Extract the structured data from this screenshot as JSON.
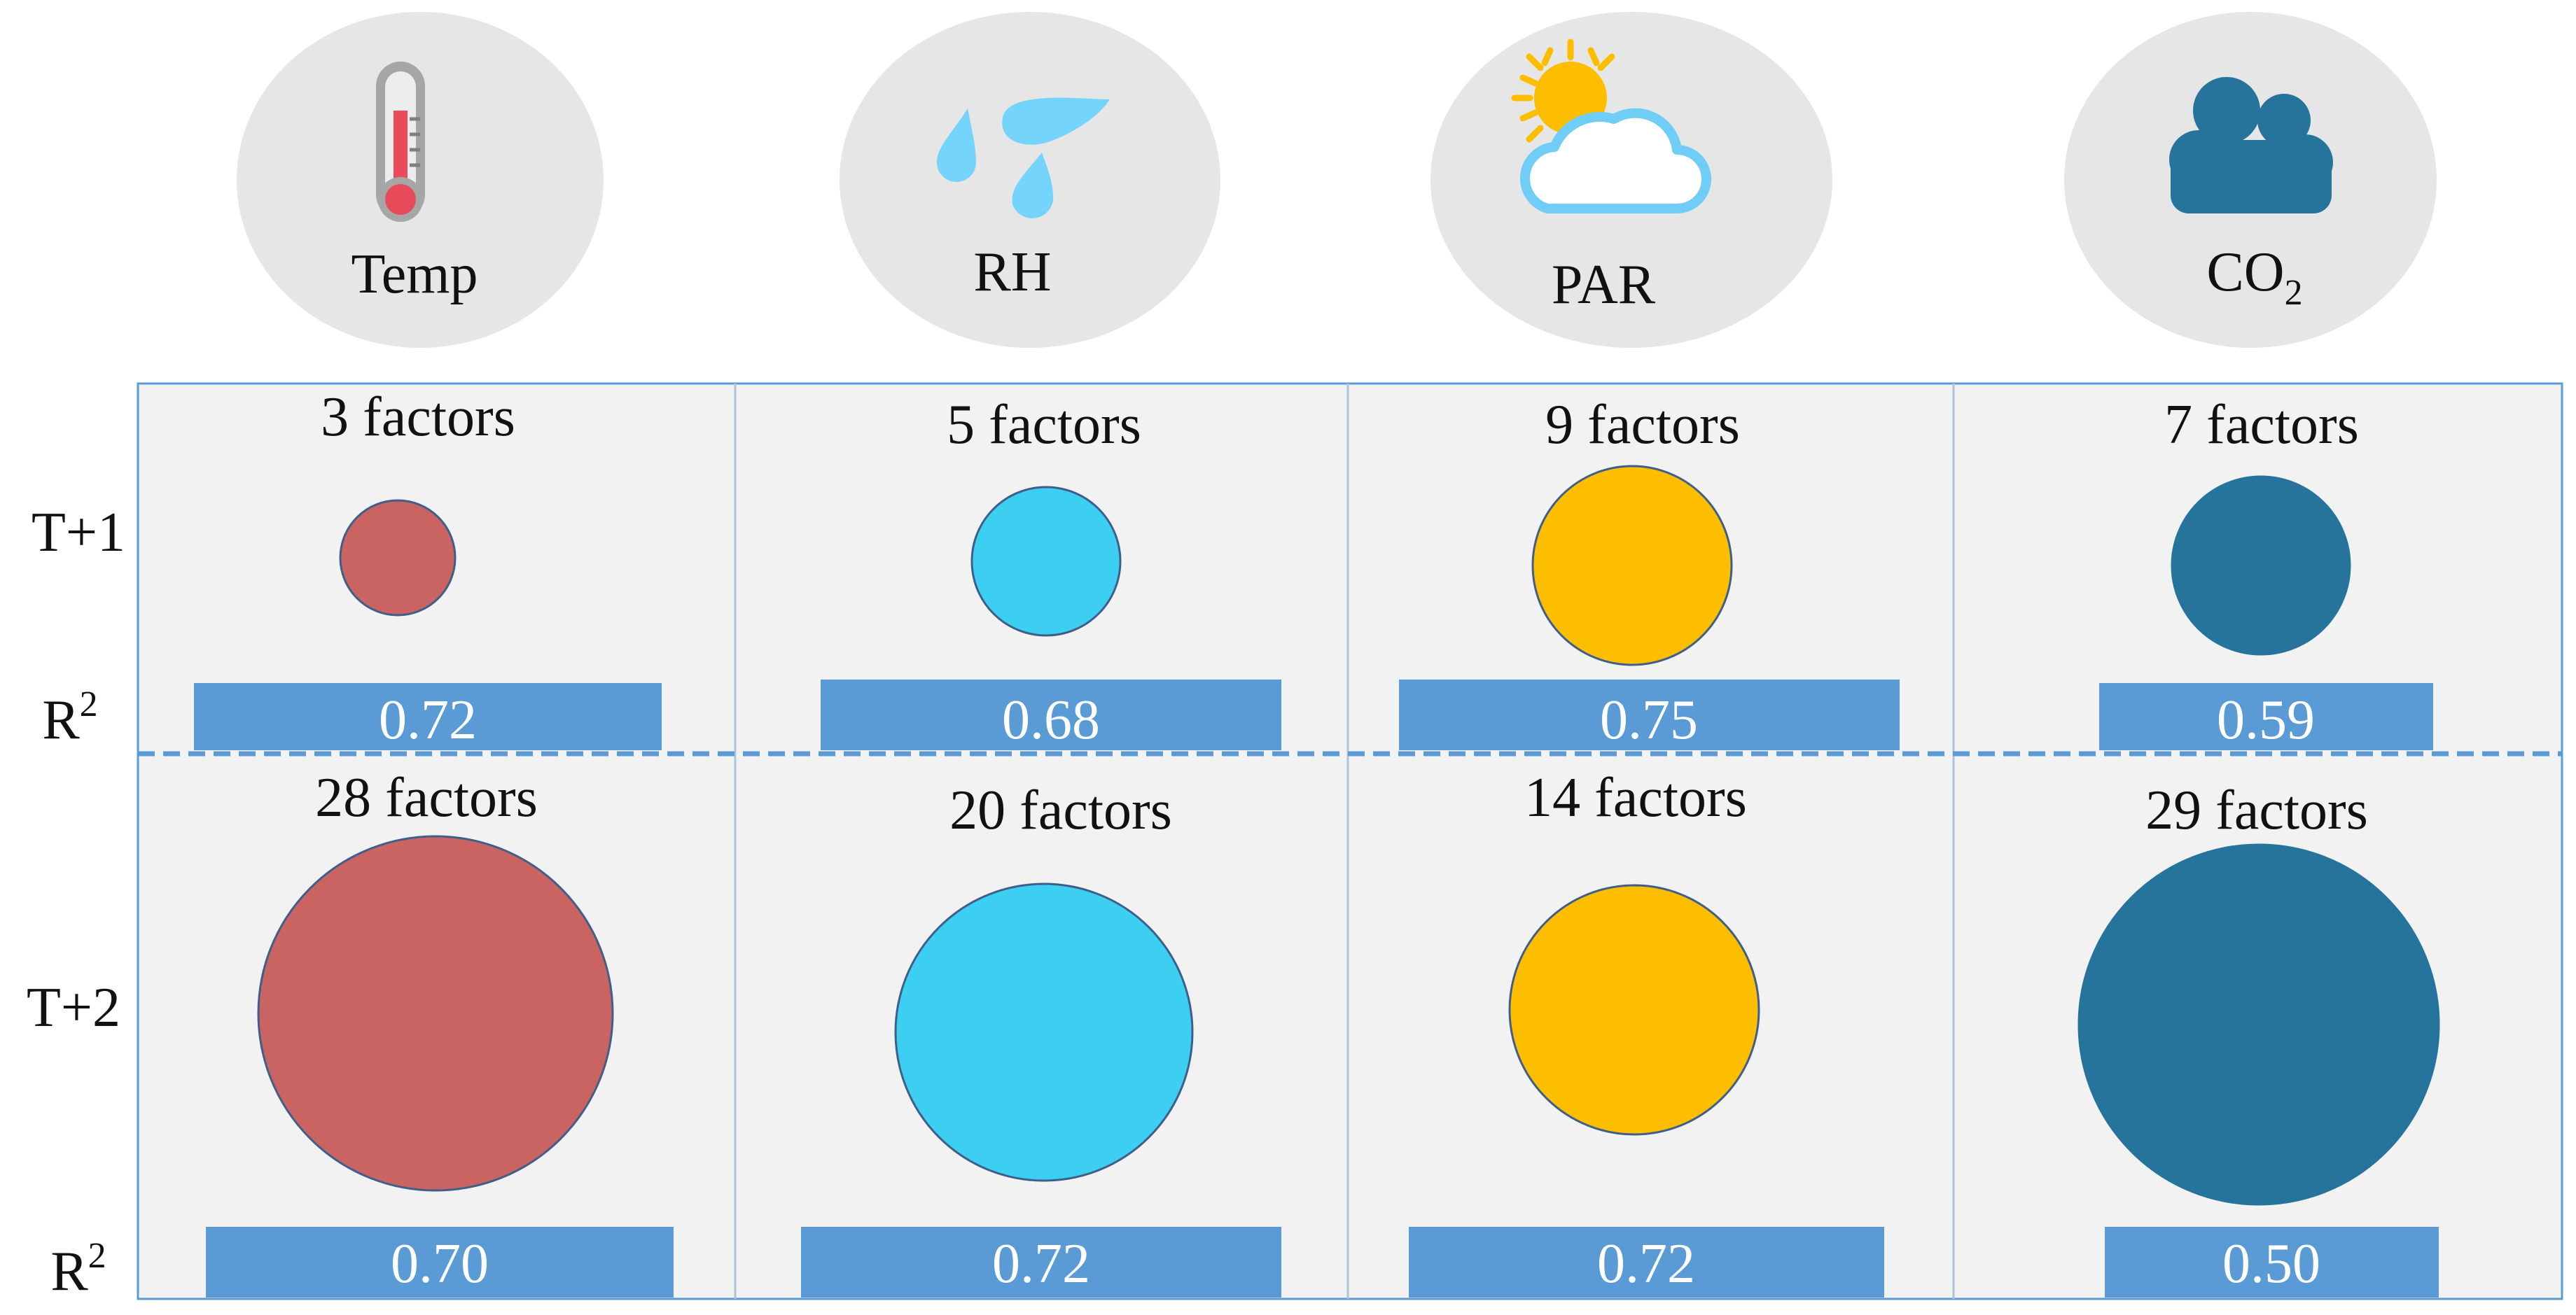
{
  "variables": [
    {
      "name": "Temp",
      "icon": "thermometer-icon",
      "color": "#C96462"
    },
    {
      "name": "RH",
      "icon": "water-drops-icon",
      "color": "#3CCFF2"
    },
    {
      "name": "PAR",
      "icon": "sun-cloud-icon",
      "color": "#FDBE00"
    },
    {
      "name": "CO",
      "subscript": "2",
      "icon": "cloud-icon",
      "color": "#26739C"
    }
  ],
  "rows": [
    {
      "label": "T+1",
      "r2_label": "R",
      "r2_sup": "2",
      "cells": [
        {
          "factors": 3,
          "factors_text": "3 factors",
          "r2": "0.72"
        },
        {
          "factors": 5,
          "factors_text": "5 factors",
          "r2": "0.68"
        },
        {
          "factors": 9,
          "factors_text": "9 factors",
          "r2": "0.75"
        },
        {
          "factors": 7,
          "factors_text": "7 factors",
          "r2": "0.59"
        }
      ]
    },
    {
      "label": "T+2",
      "r2_label": "R",
      "r2_sup": "2",
      "cells": [
        {
          "factors": 28,
          "factors_text": "28 factors",
          "r2": "0.70"
        },
        {
          "factors": 20,
          "factors_text": "20 factors",
          "r2": "0.72"
        },
        {
          "factors": 14,
          "factors_text": "14 factors",
          "r2": "0.72"
        },
        {
          "factors": 29,
          "factors_text": "29 factors",
          "r2": "0.50"
        }
      ]
    }
  ],
  "colors": {
    "panel_bg": "#F2F2F2",
    "panel_border": "#5B9BD5",
    "r2_bar": "#5B9BD5",
    "icon_bg": "#E6E6E6",
    "divider": "#5B9BD5"
  }
}
